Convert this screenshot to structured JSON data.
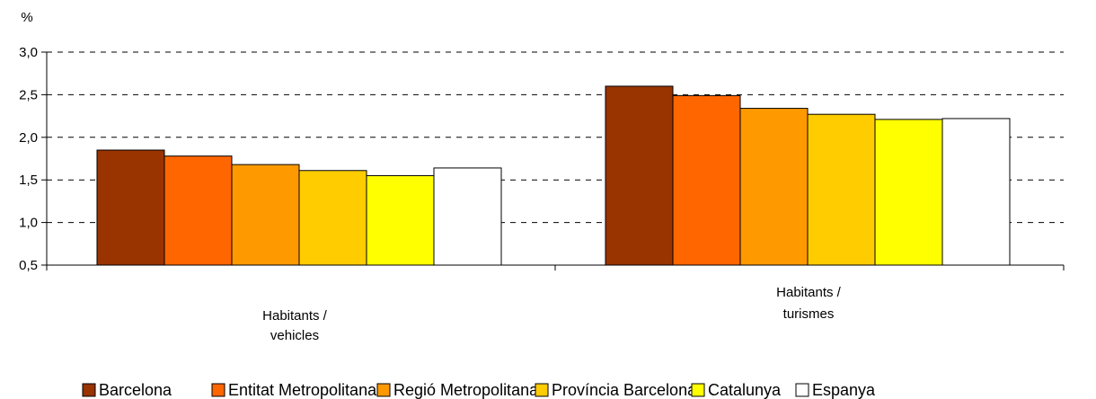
{
  "chart_data": {
    "type": "bar",
    "y_unit": "%",
    "categories": [
      "Habitants / vehicles",
      "Habitants / turismes"
    ],
    "category_lines": [
      [
        "Habitants /",
        "vehicles"
      ],
      [
        "Habitants /",
        "turismes"
      ]
    ],
    "ylim": [
      0.5,
      3.0
    ],
    "yticks": [
      0.5,
      1.0,
      1.5,
      2.0,
      2.5,
      3.0
    ],
    "ytick_labels": [
      "0,5",
      "1,0",
      "1,5",
      "2,0",
      "2,5",
      "3,0"
    ],
    "grid": "dashed-horizontal",
    "legend_position": "bottom",
    "series": [
      {
        "name": "Barcelona",
        "color": "#993300",
        "values": [
          1.85,
          2.6
        ]
      },
      {
        "name": "Entitat Metropolitana",
        "color": "#ff6600",
        "values": [
          1.78,
          2.49
        ]
      },
      {
        "name": "Regió Metropolitana",
        "color": "#ff9900",
        "values": [
          1.68,
          2.34
        ]
      },
      {
        "name": "Província Barcelona",
        "color": "#ffcc00",
        "values": [
          1.61,
          2.27
        ]
      },
      {
        "name": "Catalunya",
        "color": "#ffff00",
        "values": [
          1.55,
          2.21
        ]
      },
      {
        "name": "Espanya",
        "color": "#ffffff",
        "values": [
          1.64,
          2.22
        ]
      }
    ]
  }
}
